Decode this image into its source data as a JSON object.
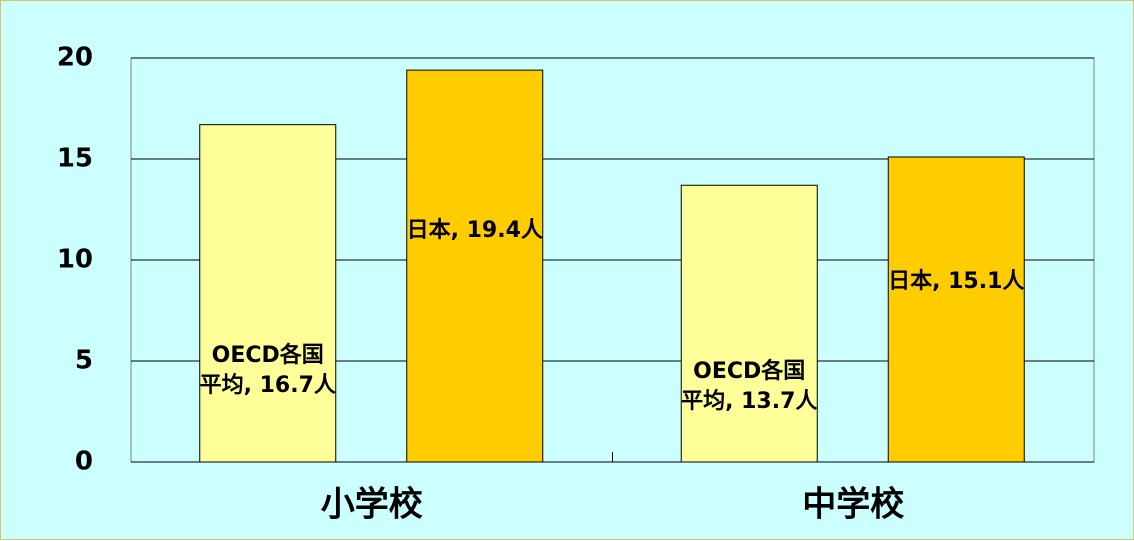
{
  "chart_data": {
    "type": "bar",
    "categories": [
      "小学校",
      "中学校"
    ],
    "series": [
      {
        "name": "OECD各国平均",
        "color": "#ffff99",
        "values": [
          16.7,
          13.7
        ],
        "value_labels": [
          "OECD各国\n平均, 16.7人",
          "OECD各国\n平均, 13.7人"
        ]
      },
      {
        "name": "日本",
        "color": "#ffcc00",
        "values": [
          19.4,
          15.1
        ],
        "value_labels": [
          "日本, 19.4人",
          "日本, 15.1人"
        ]
      }
    ],
    "ylim": [
      0,
      20
    ],
    "yticks": [
      0,
      5,
      10,
      15,
      20
    ],
    "grid": true
  }
}
